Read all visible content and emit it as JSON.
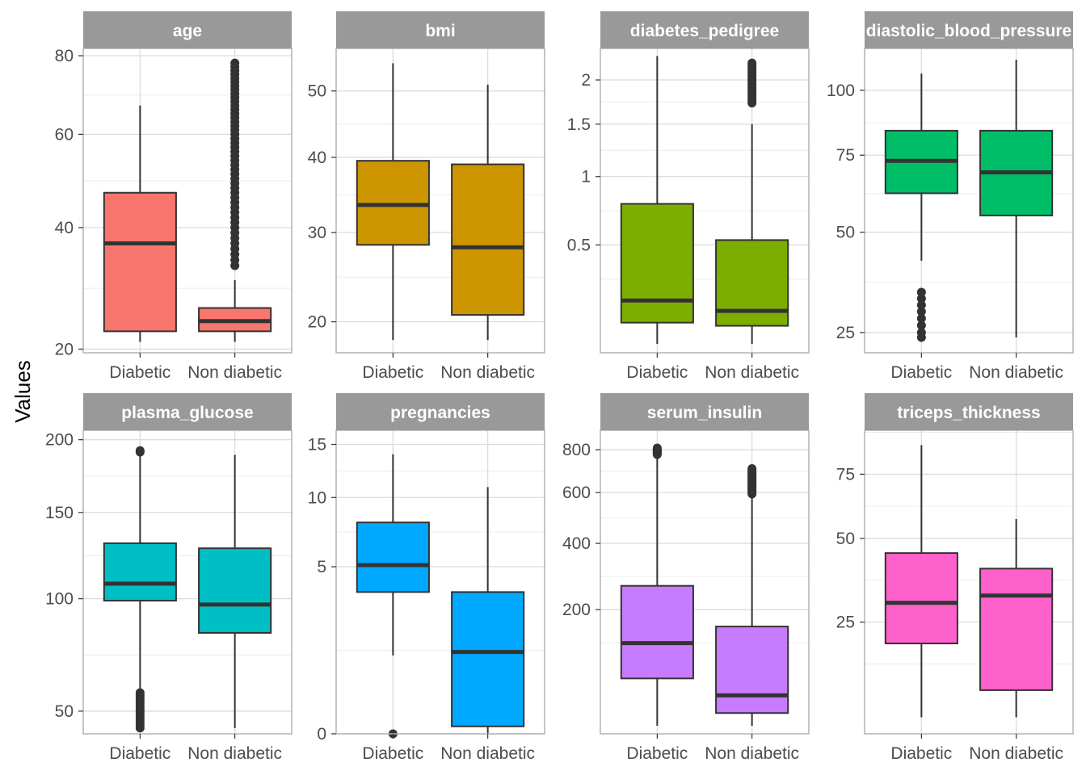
{
  "chart_data": {
    "type": "box",
    "layout": "facet-grid 2x4",
    "ylabel": "Values",
    "categories": [
      "Diabetic",
      "Non diabetic"
    ],
    "panels": [
      {
        "title": "age",
        "y_scale": "sqrt",
        "yticks": [
          20,
          40,
          60,
          80
        ],
        "ylim": [
          19.5,
          82
        ],
        "color": "#F8766D",
        "boxes": [
          {
            "category": "Diabetic",
            "min": 21,
            "q1": 22.5,
            "median": 37,
            "q3": 47,
            "max": 67,
            "outliers": []
          },
          {
            "category": "Non diabetic",
            "min": 21,
            "q1": 22.5,
            "median": 24,
            "q3": 26,
            "max": 30.5,
            "outliers": [
              33,
              34,
              35,
              36,
              37,
              38,
              39,
              40,
              41,
              42,
              43,
              44,
              45,
              46,
              47,
              48,
              49,
              50,
              51,
              52,
              53,
              54,
              55,
              56,
              57,
              58,
              59,
              60,
              61,
              62,
              63,
              64,
              65,
              66,
              67,
              68,
              69,
              70,
              71,
              72,
              73,
              74,
              75,
              76,
              77,
              78
            ]
          }
        ]
      },
      {
        "title": "bmi",
        "y_scale": "sqrt",
        "yticks": [
          20,
          30,
          40,
          50
        ],
        "ylim": [
          17,
          57
        ],
        "color": "#CD9600",
        "boxes": [
          {
            "category": "Diabetic",
            "min": 18.2,
            "q1": 28.5,
            "median": 33.5,
            "q3": 39.5,
            "max": 54.5,
            "outliers": []
          },
          {
            "category": "Non diabetic",
            "min": 18.2,
            "q1": 20.7,
            "median": 28.2,
            "q3": 39,
            "max": 51,
            "outliers": []
          }
        ]
      },
      {
        "title": "diabetes_pedigree",
        "y_scale": "sqrt",
        "yticks": [
          0.5,
          1.0,
          1.5,
          2.0
        ],
        "ylim": [
          0.06,
          2.4
        ],
        "color": "#7CAE00",
        "boxes": [
          {
            "category": "Diabetic",
            "min": 0.08,
            "q1": 0.14,
            "median": 0.22,
            "q3": 0.78,
            "max": 2.3,
            "outliers": []
          },
          {
            "category": "Non diabetic",
            "min": 0.08,
            "q1": 0.13,
            "median": 0.18,
            "q3": 0.53,
            "max": 1.5,
            "outliers": [
              1.73,
              1.76,
              1.79,
              1.82,
              1.85,
              1.88,
              1.91,
              1.94,
              1.97,
              2.0,
              2.03,
              2.06,
              2.09,
              2.12,
              2.15,
              2.18,
              2.21
            ]
          }
        ]
      },
      {
        "title": "diastolic_blood_pressure",
        "y_scale": "sqrt",
        "yticks": [
          25,
          50,
          75,
          100
        ],
        "ylim": [
          21,
          118
        ],
        "color": "#00BE67",
        "boxes": [
          {
            "category": "Diabetic",
            "min": 42,
            "q1": 62,
            "median": 73,
            "q3": 84,
            "max": 107,
            "outliers": [
              24,
              25,
              26.5,
              28,
              29.5,
              31,
              32.5,
              34
            ]
          },
          {
            "category": "Non diabetic",
            "min": 24,
            "q1": 55,
            "median": 69,
            "q3": 84,
            "max": 113,
            "outliers": []
          }
        ]
      },
      {
        "title": "plasma_glucose",
        "y_scale": "sqrt",
        "yticks": [
          50,
          100,
          150,
          200
        ],
        "ylim": [
          42,
          207
        ],
        "color": "#00BFC4",
        "boxes": [
          {
            "category": "Diabetic",
            "min": 58,
            "q1": 99,
            "median": 108,
            "q3": 131,
            "max": 192,
            "outliers": [
              44,
              45,
              46,
              47,
              48,
              49,
              50,
              51,
              52,
              53,
              54,
              55,
              56,
              57,
              191,
              192
            ]
          },
          {
            "category": "Non diabetic",
            "min": 44,
            "q1": 83,
            "median": 97,
            "q3": 128,
            "max": 189,
            "outliers": []
          }
        ]
      },
      {
        "title": "pregnancies",
        "y_scale": "sqrt",
        "yticks": [
          0,
          5,
          10,
          15
        ],
        "ylim": [
          -0.15,
          16.5
        ],
        "color": "#00A9FF",
        "boxes": [
          {
            "category": "Diabetic",
            "min": 1.1,
            "q1": 3.6,
            "median": 5.1,
            "q3": 8,
            "max": 14,
            "outliers": [
              0
            ]
          },
          {
            "category": "Non diabetic",
            "min": 0,
            "q1": 0.01,
            "median": 1.2,
            "q3": 3.6,
            "max": 10.9,
            "outliers": []
          }
        ]
      },
      {
        "title": "serum_insulin",
        "y_scale": "sqrt",
        "yticks": [
          200,
          400,
          600,
          800
        ],
        "ylim": [
          10,
          900
        ],
        "color": "#C77CFF",
        "boxes": [
          {
            "category": "Diabetic",
            "min": 15,
            "q1": 65,
            "median": 125,
            "q3": 264,
            "max": 774,
            "outliers": [
              776,
              780,
              784,
              788,
              792,
              796,
              800,
              804,
              808
            ]
          },
          {
            "category": "Non diabetic",
            "min": 15,
            "q1": 25,
            "median": 43,
            "q3": 160,
            "max": 590,
            "outliers": [
              594,
              600,
              606,
              612,
              618,
              624,
              630,
              636,
              642,
              648,
              654,
              660,
              666,
              672,
              678,
              684,
              690,
              696,
              702,
              708
            ]
          }
        ]
      },
      {
        "title": "triceps_thickness",
        "y_scale": "sqrt",
        "yticks": [
          25,
          50,
          75
        ],
        "ylim": [
          5,
          95
        ],
        "color": "#FF61CC",
        "boxes": [
          {
            "category": "Diabetic",
            "min": 7,
            "q1": 20,
            "median": 30,
            "q3": 45,
            "max": 88,
            "outliers": []
          },
          {
            "category": "Non diabetic",
            "min": 7,
            "q1": 11,
            "median": 32,
            "q3": 40,
            "max": 57,
            "outliers": []
          }
        ]
      }
    ]
  }
}
